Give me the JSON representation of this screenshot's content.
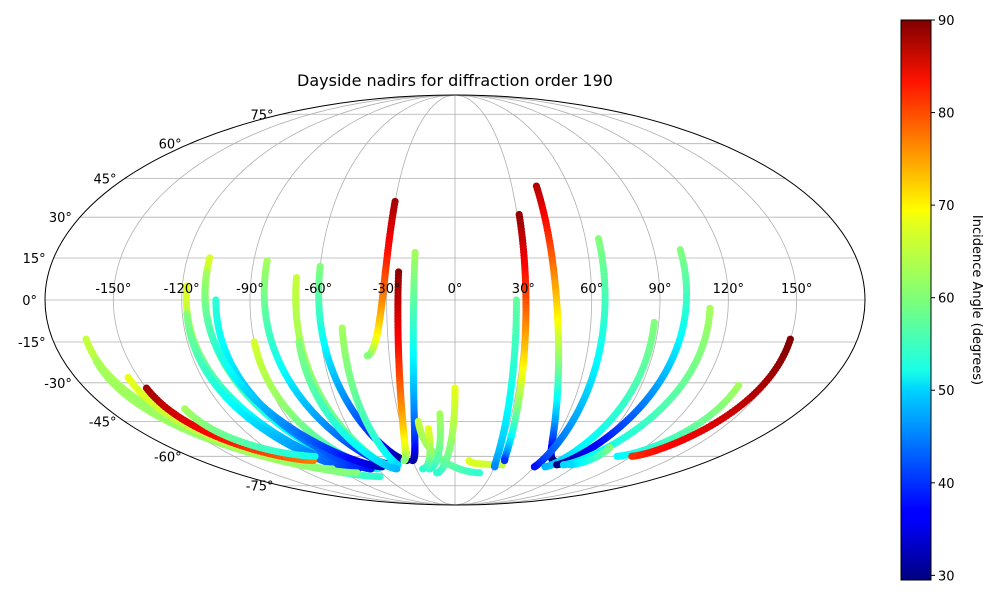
{
  "chart_data": {
    "type": "scatter",
    "projection": "mollweide",
    "title": "Dayside nadirs for diffraction order 190",
    "xlabel": "",
    "ylabel": "",
    "xlim": [
      -180,
      180
    ],
    "ylim": [
      -90,
      90
    ],
    "grid": true,
    "x_ticks": [
      -150,
      -120,
      -90,
      -60,
      -30,
      0,
      30,
      60,
      90,
      120,
      150
    ],
    "x_tick_labels": [
      "-150°",
      "-120°",
      "-90°",
      "-60°",
      "-30°",
      "0°",
      "30°",
      "60°",
      "90°",
      "120°",
      "150°"
    ],
    "y_ticks": [
      -75,
      -60,
      -45,
      -30,
      -15,
      0,
      15,
      30,
      45,
      60,
      75
    ],
    "y_tick_labels": [
      "-75°",
      "-60°",
      "-45°",
      "-30°",
      "-15°",
      "0°",
      "15°",
      "30°",
      "45°",
      "60°",
      "75°"
    ],
    "colorbar": {
      "label": "Incidence Angle (degrees)",
      "colormap": "jet",
      "range": [
        29.5,
        90
      ],
      "ticks": [
        30,
        40,
        50,
        60,
        70,
        80,
        90
      ],
      "tick_labels": [
        "30",
        "40",
        "50",
        "60",
        "70",
        "80",
        "90"
      ]
    },
    "tracks": [
      {
        "lon_start": -60,
        "lat_start": 12,
        "lon_end": -34,
        "lat_end": -62,
        "inc_start": 60,
        "inc_end": 30
      },
      {
        "lon_start": -30,
        "lat_start": 36,
        "lon_end": -40,
        "lat_end": -20,
        "inc_start": 88,
        "inc_end": 60
      },
      {
        "lon_start": -18,
        "lat_start": 17,
        "lon_end": -30,
        "lat_end": -62,
        "inc_start": 62,
        "inc_end": 32
      },
      {
        "lon_start": -25,
        "lat_start": 10,
        "lon_end": -36,
        "lat_end": -62,
        "inc_start": 89,
        "inc_end": 60
      },
      {
        "lon_start": -84,
        "lat_start": 14,
        "lon_end": -47,
        "lat_end": -64,
        "inc_start": 62,
        "inc_end": 35
      },
      {
        "lon_start": -110,
        "lat_start": 15,
        "lon_end": -70,
        "lat_end": -65,
        "inc_start": 65,
        "inc_end": 45
      },
      {
        "lon_start": -118,
        "lat_start": 5,
        "lon_end": -75,
        "lat_end": -66,
        "inc_start": 66,
        "inc_end": 38
      },
      {
        "lon_start": -70,
        "lat_start": 8,
        "lon_end": -50,
        "lat_end": -64,
        "inc_start": 64,
        "inc_end": 55
      },
      {
        "lon_start": -50,
        "lat_start": -10,
        "lon_end": -42,
        "lat_end": -64,
        "inc_start": 62,
        "inc_end": 50
      },
      {
        "lon_start": -90,
        "lat_start": -15,
        "lon_end": -60,
        "lat_end": -66,
        "inc_start": 65,
        "inc_end": 52
      },
      {
        "lon_start": -118,
        "lat_start": -5,
        "lon_end": -80,
        "lat_end": -66,
        "inc_start": 60,
        "inc_end": 40
      },
      {
        "lon_start": -105,
        "lat_start": 0,
        "lon_end": -65,
        "lat_end": -66,
        "inc_start": 55,
        "inc_end": 38
      },
      {
        "lon_start": -110,
        "lat_start": 10,
        "lon_end": -55,
        "lat_end": -65,
        "inc_start": 62,
        "inc_end": 33
      },
      {
        "lon_start": -165,
        "lat_start": -14,
        "lon_end": -65,
        "lat_end": -70,
        "inc_start": 64,
        "inc_end": 55
      },
      {
        "lon_start": -165,
        "lat_start": -22,
        "lon_end": -80,
        "lat_end": -68,
        "inc_start": 62,
        "inc_end": 60
      },
      {
        "lon_start": -155,
        "lat_start": -28,
        "lon_end": -95,
        "lat_end": -66,
        "inc_start": 66,
        "inc_end": 60
      },
      {
        "lon_start": -150,
        "lat_start": -32,
        "lon_end": -100,
        "lat_end": -62,
        "inc_start": 88,
        "inc_end": 75
      },
      {
        "lon_start": -140,
        "lat_start": -40,
        "lon_end": -95,
        "lat_end": -60,
        "inc_start": 62,
        "inc_end": 53
      },
      {
        "lon_start": -70,
        "lat_start": -15,
        "lon_end": -45,
        "lat_end": -66,
        "inc_start": 60,
        "inc_end": 48
      },
      {
        "lon_start": -20,
        "lat_start": -45,
        "lon_end": 20,
        "lat_end": -68,
        "inc_start": 64,
        "inc_end": 55
      },
      {
        "lon_start": 0,
        "lat_start": -32,
        "lon_end": -15,
        "lat_end": -68,
        "inc_start": 66,
        "inc_end": 55
      },
      {
        "lon_start": -8,
        "lat_start": -42,
        "lon_end": -20,
        "lat_end": -66,
        "inc_start": 62,
        "inc_end": 55
      },
      {
        "lon_start": -15,
        "lat_start": -48,
        "lon_end": -25,
        "lat_end": -66,
        "inc_start": 66,
        "inc_end": 55
      },
      {
        "lon_start": 10,
        "lat_start": -62,
        "lon_end": 35,
        "lat_end": -64,
        "inc_start": 66,
        "inc_end": 64
      },
      {
        "lon_start": 31,
        "lat_start": 31,
        "lon_end": 35,
        "lat_end": -62,
        "inc_start": 89,
        "inc_end": 40
      },
      {
        "lon_start": 27,
        "lat_start": 0,
        "lon_end": 30,
        "lat_end": -65,
        "inc_start": 58,
        "inc_end": 45
      },
      {
        "lon_start": 43,
        "lat_start": 42,
        "lon_end": 70,
        "lat_end": -62,
        "inc_start": 87,
        "inc_end": 28
      },
      {
        "lon_start": 66,
        "lat_start": 22,
        "lon_end": 60,
        "lat_end": -65,
        "inc_start": 60,
        "inc_end": 38
      },
      {
        "lon_start": 88,
        "lat_start": -8,
        "lon_end": 68,
        "lat_end": -65,
        "inc_start": 60,
        "inc_end": 48
      },
      {
        "lon_start": 102,
        "lat_start": 18,
        "lon_end": 75,
        "lat_end": -64,
        "inc_start": 60,
        "inc_end": 30
      },
      {
        "lon_start": 112,
        "lat_start": -3,
        "lon_end": 80,
        "lat_end": -64,
        "inc_start": 62,
        "inc_end": 50
      },
      {
        "lon_start": 137,
        "lat_start": -31,
        "lon_end": 110,
        "lat_end": -60,
        "inc_start": 62,
        "inc_end": 52
      },
      {
        "lon_start": 150,
        "lat_start": -14,
        "lon_end": 120,
        "lat_end": -60,
        "inc_start": 90,
        "inc_end": 80
      },
      {
        "lon_start": 98,
        "lat_start": -56,
        "lon_end": 85,
        "lat_end": -64,
        "inc_start": 60,
        "inc_end": 50
      }
    ]
  }
}
